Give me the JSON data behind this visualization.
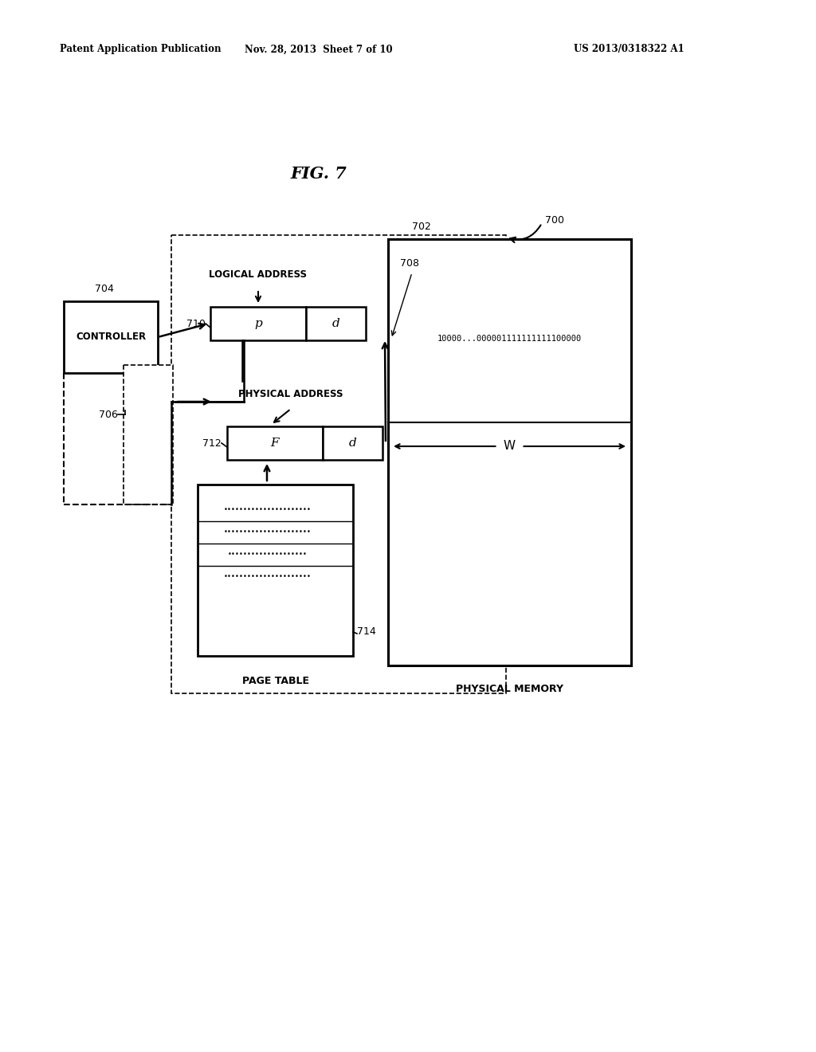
{
  "bg_color": "#ffffff",
  "text_color": "#000000",
  "header_left": "Patent Application Publication",
  "header_mid": "Nov. 28, 2013  Sheet 7 of 10",
  "header_right": "US 2013/0318322 A1",
  "title": "FIG. 7",
  "binary_string": "10000...000001111111111100000",
  "controller_label": "CONTROLLER",
  "logical_address_label": "LOGICAL ADDRESS",
  "physical_address_label": "PHYSICAL ADDRESS",
  "page_table_label": "PAGE TABLE",
  "physical_memory_label": "PHYSICAL MEMORY",
  "W_label": "W",
  "p_label": "p",
  "d_label": "d",
  "F_label": "F",
  "ref_700": "700",
  "ref_702": "702",
  "ref_704": "704",
  "ref_706": "706",
  "ref_708": "708",
  "ref_710": "710",
  "ref_712": "712",
  "ref_714": "714"
}
